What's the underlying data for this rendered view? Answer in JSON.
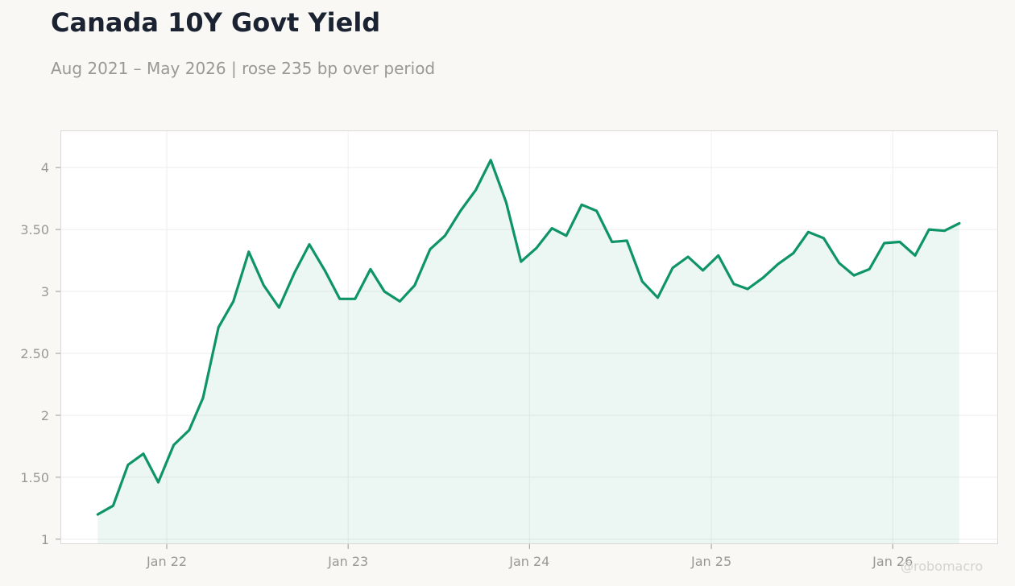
{
  "header": {
    "title": "Canada 10Y Govt Yield",
    "subtitle": "Aug 2021 – May 2026 | rose 235 bp over period"
  },
  "watermark": "@robomacro",
  "colors": {
    "line": "#0f9468",
    "fill": "#0f9468",
    "grid": "#eeeeec",
    "frame": "#dad9d3",
    "plot_bg": "#ffffff",
    "page_bg": "#f9f8f5"
  },
  "chart_data": {
    "type": "area",
    "title": "Canada 10Y Govt Yield",
    "xlabel": "",
    "ylabel": "",
    "grid": true,
    "legend": "none",
    "xlim": [
      "2021-06-01",
      "2026-08-01"
    ],
    "ylim": [
      0.96,
      4.3
    ],
    "y_ticks": [
      {
        "value": 1,
        "label": "1"
      },
      {
        "value": 1.5,
        "label": "1.50"
      },
      {
        "value": 2,
        "label": "2"
      },
      {
        "value": 2.5,
        "label": "2.50"
      },
      {
        "value": 3,
        "label": "3"
      },
      {
        "value": 3.5,
        "label": "3.50"
      },
      {
        "value": 4,
        "label": "4"
      }
    ],
    "x_ticks": [
      {
        "date": "2022-01-01",
        "label": "Jan 22"
      },
      {
        "date": "2023-01-01",
        "label": "Jan 23"
      },
      {
        "date": "2024-01-01",
        "label": "Jan 24"
      },
      {
        "date": "2025-01-01",
        "label": "Jan 25"
      },
      {
        "date": "2026-01-01",
        "label": "Jan 26"
      }
    ],
    "x": [
      "2021-08",
      "2021-09",
      "2021-10",
      "2021-11",
      "2021-12",
      "2022-01",
      "2022-02",
      "2022-03",
      "2022-04",
      "2022-05",
      "2022-06",
      "2022-07",
      "2022-08",
      "2022-09",
      "2022-10",
      "2022-11",
      "2022-12",
      "2023-01",
      "2023-02",
      "2023-03",
      "2023-04",
      "2023-05",
      "2023-06",
      "2023-07",
      "2023-08",
      "2023-09",
      "2023-10",
      "2023-11",
      "2023-12",
      "2024-01",
      "2024-02",
      "2024-03",
      "2024-04",
      "2024-05",
      "2024-06",
      "2024-07",
      "2024-08",
      "2024-09",
      "2024-10",
      "2024-11",
      "2024-12",
      "2025-01",
      "2025-02",
      "2025-03",
      "2025-04",
      "2025-05",
      "2025-06",
      "2025-07",
      "2025-08",
      "2025-09",
      "2025-10",
      "2025-11",
      "2025-12",
      "2026-01",
      "2026-02",
      "2026-03",
      "2026-04",
      "2026-05"
    ],
    "series": [
      {
        "values": [
          1.2,
          1.27,
          1.6,
          1.69,
          1.46,
          1.76,
          1.88,
          2.14,
          2.71,
          2.92,
          3.32,
          3.05,
          2.87,
          3.15,
          3.38,
          3.17,
          2.94,
          2.94,
          3.18,
          3.0,
          2.92,
          3.05,
          3.34,
          3.45,
          3.65,
          3.82,
          4.06,
          3.72,
          3.24,
          3.35,
          3.51,
          3.45,
          3.7,
          3.65,
          3.4,
          3.41,
          3.08,
          2.95,
          3.19,
          3.28,
          3.17,
          3.29,
          3.06,
          3.02,
          3.11,
          3.22,
          3.31,
          3.48,
          3.43,
          3.23,
          3.13,
          3.18,
          3.39,
          3.4,
          3.29,
          3.5,
          3.49,
          3.55
        ]
      }
    ]
  }
}
